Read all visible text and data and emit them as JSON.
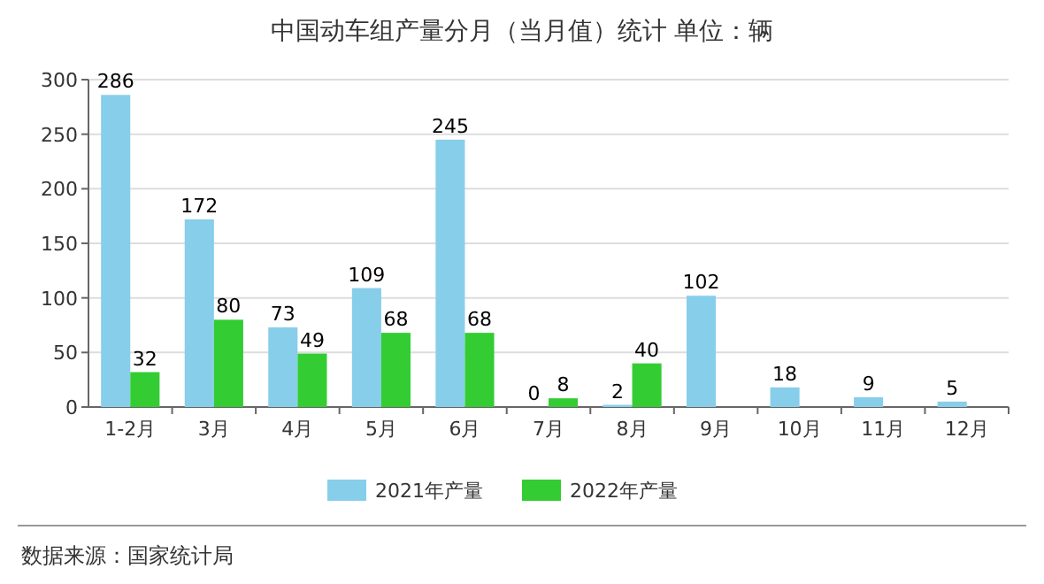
{
  "chart_data": {
    "type": "bar",
    "title": "中国动车组产量分月（当月值）统计  单位：辆",
    "categories": [
      "1-2月",
      "3月",
      "4月",
      "5月",
      "6月",
      "7月",
      "8月",
      "9月",
      "10月",
      "11月",
      "12月"
    ],
    "series": [
      {
        "name": "2021年产量",
        "color": "#87ceeb",
        "values": [
          286,
          172,
          73,
          109,
          245,
          0,
          2,
          102,
          18,
          9,
          5
        ]
      },
      {
        "name": "2022年产量",
        "color": "#33cc33",
        "values": [
          32,
          80,
          49,
          68,
          68,
          8,
          40,
          null,
          null,
          null,
          null
        ]
      }
    ],
    "ylim": [
      0,
      300
    ],
    "yticks": [
      0,
      50,
      100,
      150,
      200,
      250,
      300
    ],
    "grid": "y",
    "legend": "bottom",
    "data_labels": true,
    "annotations": [
      "数据来源：国家统计局"
    ]
  }
}
